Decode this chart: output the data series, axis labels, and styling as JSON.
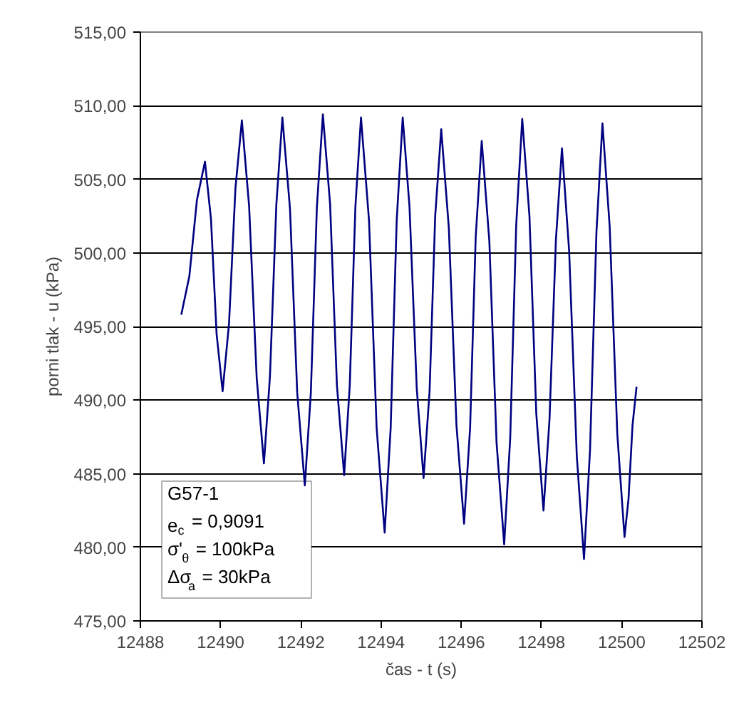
{
  "chart_data": {
    "type": "line",
    "xlabel": "čas - t (s)",
    "ylabel": "porni tlak - u (kPa)",
    "x": [
      12489.02,
      12489.22,
      12489.41,
      12489.61,
      12489.76,
      12489.9,
      12490.05,
      12490.21,
      12490.37,
      12490.53,
      12490.71,
      12490.9,
      12491.08,
      12491.23,
      12491.39,
      12491.54,
      12491.73,
      12491.91,
      12492.1,
      12492.25,
      12492.4,
      12492.55,
      12492.73,
      12492.9,
      12493.08,
      12493.22,
      12493.36,
      12493.5,
      12493.7,
      12493.89,
      12494.09,
      12494.24,
      12494.39,
      12494.54,
      12494.71,
      12494.89,
      12495.06,
      12495.21,
      12495.35,
      12495.5,
      12495.69,
      12495.88,
      12496.07,
      12496.22,
      12496.36,
      12496.51,
      12496.7,
      12496.88,
      12497.07,
      12497.22,
      12497.37,
      12497.52,
      12497.7,
      12497.87,
      12498.05,
      12498.2,
      12498.36,
      12498.51,
      12498.69,
      12498.88,
      12499.06,
      12499.21,
      12499.37,
      12499.52,
      12499.7,
      12499.89,
      12500.07,
      12500.17,
      12500.27,
      12500.37
    ],
    "series": [
      {
        "color": "#000080",
        "values": [
          495.8,
          498.4,
          503.6,
          506.2,
          502.3,
          494.5,
          490.6,
          495.2,
          504.4,
          509.0,
          503.2,
          491.5,
          485.7,
          491.6,
          503.3,
          509.2,
          503.0,
          490.5,
          484.2,
          490.5,
          503.1,
          509.4,
          503.3,
          491.0,
          484.9,
          491.0,
          503.1,
          509.2,
          502.2,
          488.1,
          481.0,
          488.1,
          502.2,
          509.2,
          503.1,
          490.8,
          484.7,
          490.6,
          502.5,
          508.4,
          501.7,
          488.3,
          481.6,
          488.1,
          501.1,
          507.6,
          500.8,
          487.1,
          480.2,
          487.4,
          501.9,
          509.1,
          502.5,
          489.1,
          482.5,
          488.7,
          500.9,
          507.1,
          500.1,
          486.2,
          479.2,
          486.6,
          501.4,
          508.8,
          501.8,
          487.7,
          480.7,
          483.3,
          488.3,
          490.9
        ]
      }
    ],
    "xlim": [
      12488,
      12502
    ],
    "xticks": [
      12488,
      12490,
      12492,
      12494,
      12496,
      12498,
      12500,
      12502
    ],
    "ylim": [
      475,
      515
    ],
    "yticks": [
      {
        "value": 475,
        "label": "475,00"
      },
      {
        "value": 480,
        "label": "480,00"
      },
      {
        "value": 485,
        "label": "485,00"
      },
      {
        "value": 490,
        "label": "490,00"
      },
      {
        "value": 495,
        "label": "495,00"
      },
      {
        "value": 500,
        "label": "500,00"
      },
      {
        "value": 505,
        "label": "505,00"
      },
      {
        "value": 510,
        "label": "510,00"
      },
      {
        "value": 515,
        "label": "515,00"
      }
    ],
    "grid": "y",
    "marker": "none",
    "line_style": "solid",
    "annotations": [
      "G57-1",
      "e$_{c}$ = 0,9091",
      "σ'$_{θ}$ = 100kPa",
      "Δσ$_{a}$ = 30kPa"
    ]
  }
}
